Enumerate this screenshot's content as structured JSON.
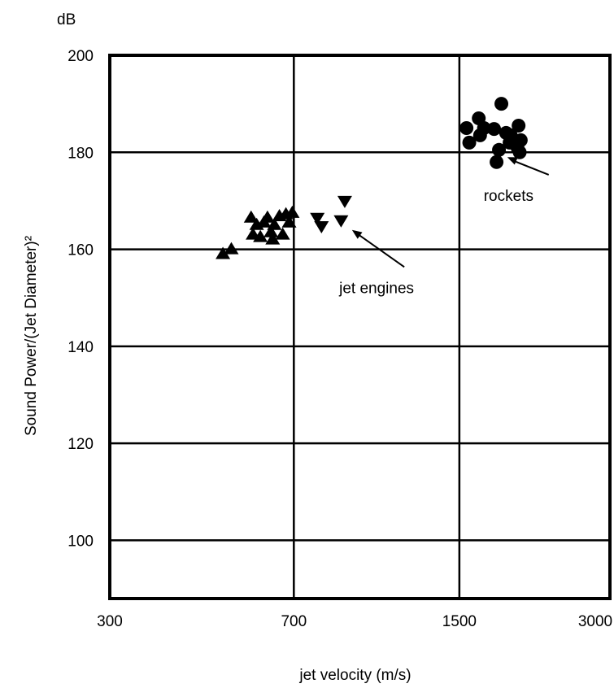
{
  "chart_data": {
    "type": "scatter",
    "x_scale": "log",
    "xlim": [
      300,
      3000
    ],
    "ylim": [
      88,
      200
    ],
    "x_ticks": [
      300,
      700,
      1500,
      3000
    ],
    "y_ticks": [
      100,
      120,
      140,
      160,
      180,
      200
    ],
    "y_unit": "dB",
    "xlabel": "jet velocity (m/s)",
    "ylabel": "Sound Power/(Jet Diameter)²",
    "grid": true,
    "series": [
      {
        "marker": "triangle-up",
        "points": [
          [
            505,
            159
          ],
          [
            525,
            160
          ],
          [
            575,
            166.5
          ],
          [
            580,
            163
          ],
          [
            590,
            165
          ],
          [
            600,
            162.5
          ],
          [
            610,
            165.5
          ],
          [
            620,
            166.5
          ],
          [
            630,
            163.5
          ],
          [
            635,
            162
          ],
          [
            640,
            165
          ],
          [
            655,
            166.8
          ],
          [
            665,
            163
          ],
          [
            675,
            167.2
          ],
          [
            685,
            165.5
          ],
          [
            695,
            167.5
          ]
        ]
      },
      {
        "marker": "triangle-down",
        "points": [
          [
            780,
            166.5
          ],
          [
            795,
            164.8
          ],
          [
            870,
            166
          ],
          [
            885,
            170
          ]
        ]
      },
      {
        "marker": "circle",
        "points": [
          [
            1550,
            185
          ],
          [
            1570,
            182
          ],
          [
            1640,
            187
          ],
          [
            1650,
            183.5
          ],
          [
            1680,
            185
          ],
          [
            1760,
            184.8
          ],
          [
            1780,
            178
          ],
          [
            1800,
            180.5
          ],
          [
            1820,
            190
          ],
          [
            1860,
            184
          ],
          [
            1890,
            182
          ],
          [
            1900,
            183.5
          ],
          [
            1960,
            181
          ],
          [
            1970,
            185.5
          ],
          [
            1980,
            180
          ],
          [
            1990,
            182.5
          ]
        ]
      }
    ],
    "annotations": [
      {
        "text": "jet engines",
        "arrow_to": [
          915,
          164
        ],
        "label_at": [
          1080,
          152
        ]
      },
      {
        "text": "rockets",
        "arrow_to": [
          1870,
          179
        ],
        "label_at": [
          2100,
          171
        ]
      }
    ]
  }
}
